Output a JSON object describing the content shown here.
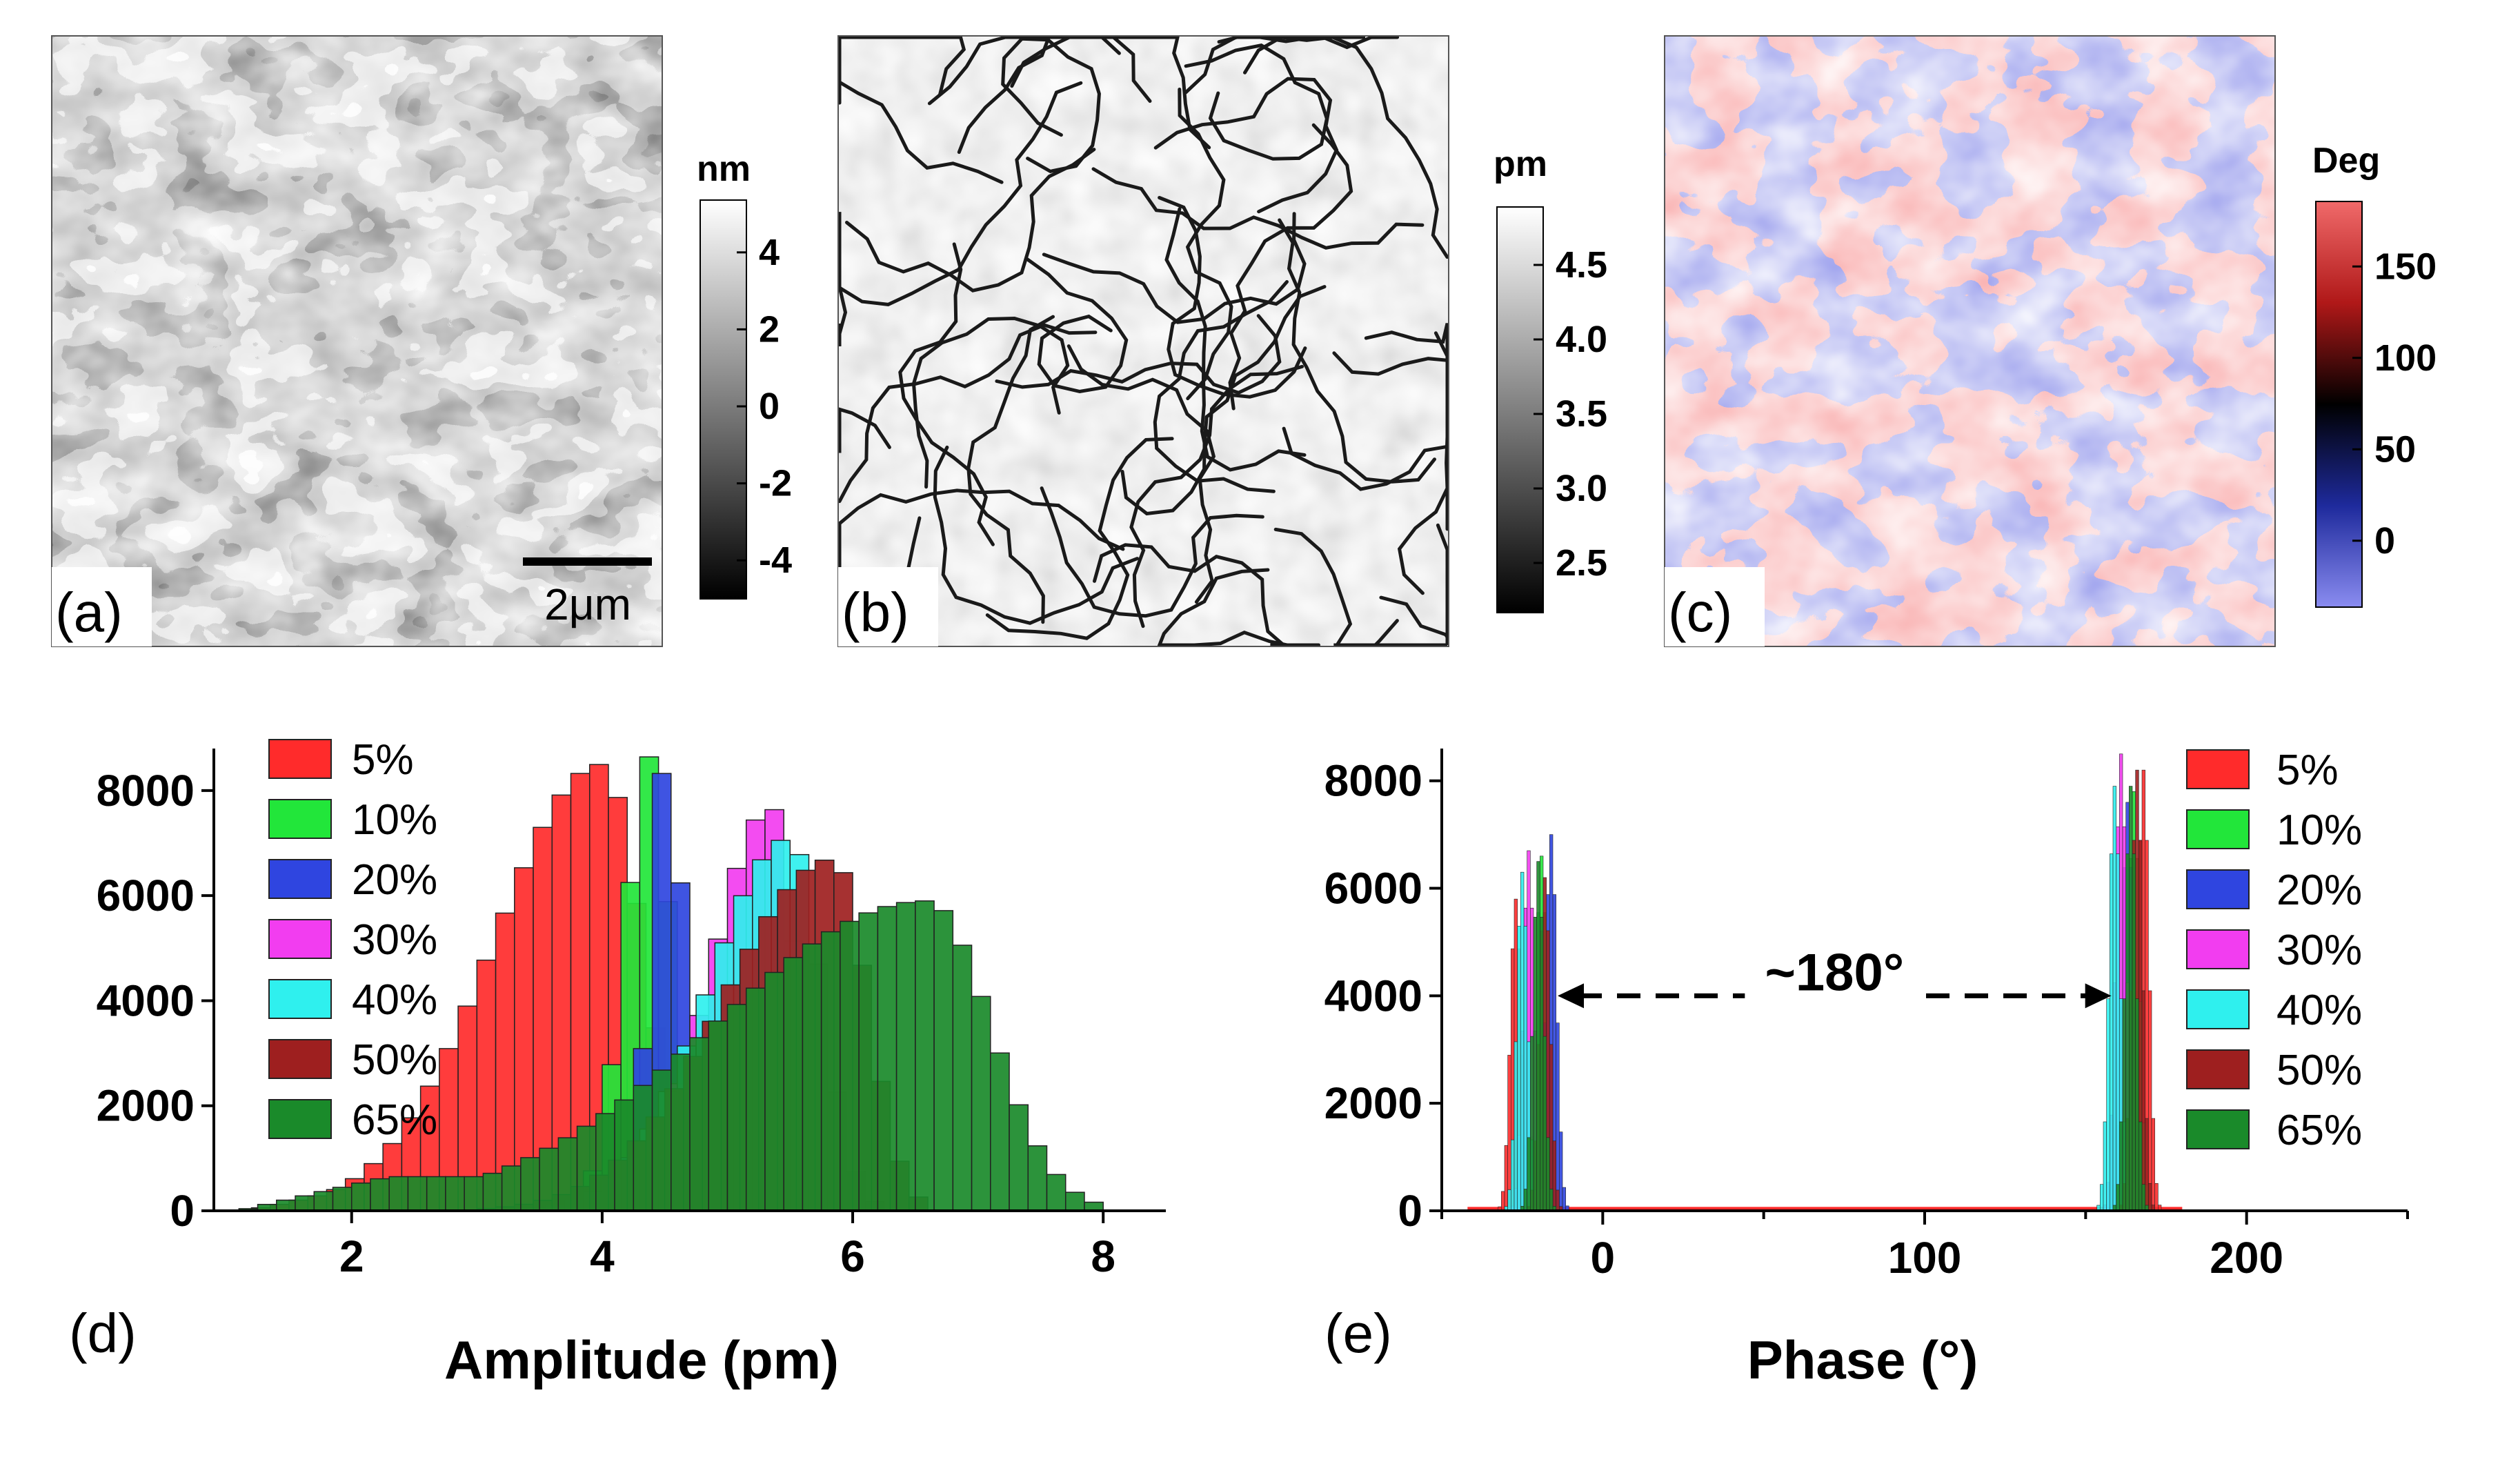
{
  "panels": {
    "a": {
      "label": "(a)",
      "scale_bar_text": "2μm",
      "colorbar": {
        "unit": "nm",
        "ticks": [
          "4",
          "2",
          "0",
          "-2",
          "-4"
        ],
        "colors": [
          "#000000",
          "#ffffff"
        ]
      }
    },
    "b": {
      "label": "(b)",
      "colorbar": {
        "unit": "pm",
        "ticks": [
          "4.5",
          "4.0",
          "3.5",
          "3.0",
          "2.5"
        ],
        "colors": [
          "#000000",
          "#ffffff"
        ]
      }
    },
    "c": {
      "label": "(c)",
      "colorbar": {
        "unit": "Deg",
        "ticks": [
          "150",
          "100",
          "50",
          "0"
        ],
        "colors": [
          "#8a8cf0",
          "#1e2a9c",
          "#000000",
          "#b01818",
          "#f06a6a"
        ]
      },
      "domain_colors": {
        "red": "#f26b6b",
        "blue": "#4f55d6"
      }
    },
    "d": {
      "label": "(d)"
    },
    "e": {
      "label": "(e)",
      "annotation": "~180°"
    }
  },
  "chart_data": [
    {
      "type": "bar",
      "panel": "d",
      "title": "",
      "xlabel": "Amplitude (pm)",
      "ylabel": "",
      "xlim": [
        0.9,
        8.5
      ],
      "ylim": [
        0,
        8800
      ],
      "x_ticks": [
        2,
        4,
        6,
        8
      ],
      "y_ticks": [
        0,
        2000,
        4000,
        6000,
        8000
      ],
      "bin_width": 0.15,
      "legend": [
        "5%",
        "10%",
        "20%",
        "30%",
        "40%",
        "50%",
        "65%"
      ],
      "legend_position": "top-left",
      "series": [
        {
          "name": "5%",
          "color": "#ff2b2b",
          "peak": 4.0,
          "peak_height": 8500,
          "start": 1.2,
          "end": 4.9
        },
        {
          "name": "10%",
          "color": "#22e63a",
          "peak": 4.4,
          "peak_height": 8700,
          "start": 3.7,
          "end": 4.8
        },
        {
          "name": "20%",
          "color": "#2f45e0",
          "peak": 4.5,
          "peak_height": 8500,
          "start": 4.1,
          "end": 4.95
        },
        {
          "name": "30%",
          "color": "#f23df0",
          "peak": 5.35,
          "peak_height": 7700,
          "start": 3.8,
          "end": 5.9
        },
        {
          "name": "40%",
          "color": "#2ff0ee",
          "peak": 5.5,
          "peak_height": 7100,
          "start": 3.4,
          "end": 6.2
        },
        {
          "name": "50%",
          "color": "#9e1f1f",
          "peak": 5.85,
          "peak_height": 6700,
          "start": 3.0,
          "end": 6.6
        },
        {
          "name": "65%",
          "color": "#1a8a2a",
          "peak": 6.6,
          "peak_height": 5900,
          "start": 1.1,
          "end": 8.0
        }
      ]
    },
    {
      "type": "bar",
      "panel": "e",
      "title": "",
      "xlabel": "Phase (°)",
      "ylabel": "",
      "xlim": [
        -50,
        250
      ],
      "ylim": [
        0,
        8600
      ],
      "x_ticks": [
        0,
        100,
        200
      ],
      "y_ticks": [
        0,
        2000,
        4000,
        6000,
        8000
      ],
      "legend": [
        "5%",
        "10%",
        "20%",
        "30%",
        "40%",
        "50%",
        "65%"
      ],
      "legend_position": "top-right",
      "series": [
        {
          "name": "5%",
          "color": "#ff2b2b",
          "peaks": [
            [
              -27,
              5800
            ],
            [
              168,
              8200
            ]
          ]
        },
        {
          "name": "10%",
          "color": "#22e63a",
          "peaks": [
            [
              -19,
              6600
            ],
            [
              165,
              7800
            ]
          ]
        },
        {
          "name": "20%",
          "color": "#2f45e0",
          "peaks": [
            [
              -16,
              7000
            ],
            [
              163,
              7600
            ]
          ]
        },
        {
          "name": "30%",
          "color": "#f23df0",
          "peaks": [
            [
              -23,
              6700
            ],
            [
              161,
              8500
            ]
          ]
        },
        {
          "name": "40%",
          "color": "#2ff0ee",
          "peaks": [
            [
              -25,
              6300
            ],
            [
              159,
              7900
            ]
          ]
        },
        {
          "name": "50%",
          "color": "#9e1f1f",
          "peaks": [
            [
              -18,
              6200
            ],
            [
              166,
              8200
            ]
          ]
        },
        {
          "name": "65%",
          "color": "#1a8a2a",
          "peaks": [
            [
              -20,
              6500
            ],
            [
              164,
              7900
            ]
          ]
        }
      ],
      "annotation": {
        "text": "~180°",
        "from_x": -14,
        "to_x": 158,
        "y": 4000
      }
    }
  ]
}
